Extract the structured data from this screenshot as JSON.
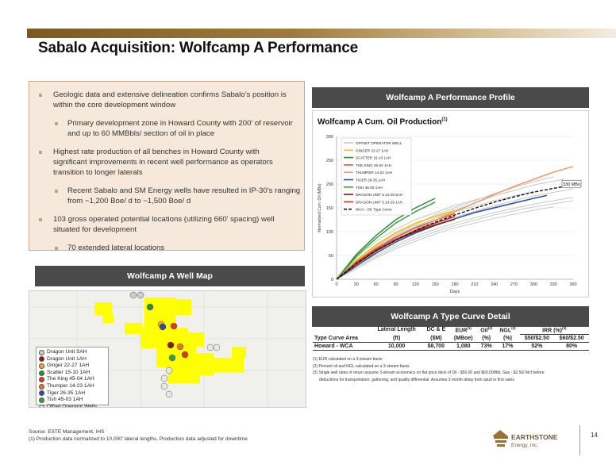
{
  "slide": {
    "title": "Sabalo Acquisition: Wolfcamp A Performance",
    "page_number": "14",
    "colors": {
      "accent": "#8a6a2e",
      "panel_header": "#4a4a4a",
      "bullet_bg": "#f6e8da",
      "map_yellow": "#ffff00"
    }
  },
  "bullets": [
    {
      "level": 1,
      "lines": [
        "Geologic data and extensive delineation confirms Sabalo’s position is",
        "within the core development window"
      ]
    },
    {
      "level": 2,
      "lines": [
        "Primary development zone in Howard County with 200’ of reservoir",
        "and up to 60 MMBbls/ section of oil in place"
      ]
    },
    {
      "level": 1,
      "lines": [
        "Highest rate production of all benches in Howard County with",
        "significant improvements in recent well performance as operators",
        "transition to longer laterals"
      ]
    },
    {
      "level": 2,
      "lines": [
        "Recent Sabalo and SM Energy wells have resulted in IP-30’s ranging",
        "from ~1,200 Boe/ d to ~1,500 Boe/ d"
      ]
    },
    {
      "level": 1,
      "lines": [
        "103 gross operated potential locations (utilizing 660’ spacing) well",
        "situated for development"
      ]
    },
    {
      "level": 2,
      "lines": [
        "70 extended lateral locations"
      ]
    }
  ],
  "performance_profile": {
    "header": "Wolfcamp A Performance Profile",
    "chart_title": "Wolfcamp A Cum. Oil Production",
    "chart_title_sup": "(1)"
  },
  "well_map": {
    "header": "Wolfcamp A Well Map",
    "legend": [
      {
        "label": "Dragon Unit SAH",
        "color": "#cccccc"
      },
      {
        "label": "Dragon Unit 1AH",
        "color": "#8b1a1a"
      },
      {
        "label": "Ginger 22-27 1AH",
        "color": "#f2a33a"
      },
      {
        "label": "Scatter 15-10 1AH",
        "color": "#2e8b3e"
      },
      {
        "label": "The King 45-04 1AH",
        "color": "#d93a1a"
      },
      {
        "label": "Thumper 14-23 1AH",
        "color": "#e07a20"
      },
      {
        "label": "Tiger 26-35 1AH",
        "color": "#2a4fa8"
      },
      {
        "label": "Tish 45-03 1AH",
        "color": "#3aa03a"
      },
      {
        "label": "Offset Operator Wells",
        "color": "#e8e8e8"
      }
    ]
  },
  "type_curve": {
    "header": "Wolfcamp A Type Curve Detail",
    "columns": [
      "Type Curve Area",
      "Lateral Length (ft)",
      "DC & E ($M)",
      "EUR(1) (MBoe)",
      "Oil(2) (%)",
      "NGL(2) (%)",
      "IRR (%)(3) $50/$2.50",
      "IRR (%)(3) $60/$2.50"
    ],
    "header_row1": [
      "",
      "Lateral Length",
      "DC & E",
      "EUR",
      "Oil",
      "NGL",
      "IRR (%)"
    ],
    "header_row1_sup": [
      "",
      "",
      "",
      "(1)",
      "(2)",
      "(2)",
      "(3)"
    ],
    "header_row2": [
      "Type Curve Area",
      "(ft)",
      "($M)",
      "(MBoe)",
      "(%)",
      "(%)",
      "$50/$2.50",
      "$60/$2.50"
    ],
    "rows": [
      [
        "Howard - WCA",
        "10,000",
        "$8,700",
        "1,080",
        "73%",
        "17%",
        "52%",
        "80%"
      ]
    ],
    "notes": [
      "(1) EUR calculated on a 3-stream basis",
      "(2) Percent oil and NGL calculated on a 3-stream basis",
      "(3) Single well rates of return assume 3-stream economics on flat price deck of Oil - $50.00 and $60.00/Bbl, Gas - $2.50/ Mcf before",
      "deductions for transportation, gathering, and quality differential. Assumes 3 month delay from spud to first sales"
    ]
  },
  "footer": {
    "source": "Source: ESTE Management, IHS",
    "note": "(1)   Production data normalized to 10,000’ lateral lengths. Production data adjusted for downtime"
  },
  "logo": {
    "name": "EARTHSTONE",
    "sub": "Energy, Inc."
  },
  "chart_data": {
    "type": "line",
    "title": "Wolfcamp A Cum. Oil Production",
    "xlabel": "Days",
    "ylabel": "Normalized Cum. Oil (MBo)",
    "xlim": [
      0,
      360
    ],
    "ylim": [
      0,
      300
    ],
    "xticks": [
      0,
      30,
      60,
      90,
      120,
      150,
      180,
      210,
      240,
      270,
      300,
      330,
      360
    ],
    "yticks": [
      0,
      50,
      100,
      150,
      200,
      250,
      300
    ],
    "annotation": "330 MBo",
    "legend_position": "top-left",
    "series": [
      {
        "name": "OFFSET OPERATOR WELL",
        "color": "#c8c8c8",
        "width": 1,
        "dash": "",
        "x": [
          0,
          30,
          60,
          90,
          120,
          150,
          180,
          240,
          300,
          330
        ],
        "y": [
          0,
          40,
          70,
          95,
          115,
          135,
          150,
          180,
          205,
          215
        ]
      },
      {
        "name": "",
        "color": "#c8c8c8",
        "width": 1,
        "dash": "",
        "x": [
          0,
          30,
          60,
          90,
          120,
          150,
          180,
          240,
          300,
          360
        ],
        "y": [
          0,
          30,
          55,
          78,
          98,
          115,
          130,
          155,
          175,
          190
        ]
      },
      {
        "name": "",
        "color": "#c8c8c8",
        "width": 1,
        "dash": "",
        "x": [
          0,
          30,
          60,
          90,
          120,
          150,
          180,
          240,
          300,
          360
        ],
        "y": [
          0,
          25,
          48,
          68,
          85,
          100,
          113,
          135,
          152,
          165
        ]
      },
      {
        "name": "",
        "color": "#c8c8c8",
        "width": 1,
        "dash": "",
        "x": [
          0,
          30,
          60,
          90,
          120,
          150,
          180,
          240,
          300,
          345
        ],
        "y": [
          0,
          35,
          65,
          90,
          110,
          128,
          145,
          175,
          198,
          210
        ]
      },
      {
        "name": "",
        "color": "#c8c8c8",
        "width": 1,
        "dash": "",
        "x": [
          0,
          30,
          60,
          90,
          120,
          150,
          180,
          240
        ],
        "y": [
          0,
          45,
          80,
          105,
          125,
          140,
          155,
          178
        ]
      },
      {
        "name": "",
        "color": "#c8c8c8",
        "width": 1,
        "dash": "",
        "x": [
          0,
          30,
          60,
          90,
          120,
          150,
          180,
          240,
          300,
          360
        ],
        "y": [
          0,
          28,
          52,
          72,
          90,
          105,
          118,
          140,
          158,
          172
        ]
      },
      {
        "name": "",
        "color": "#c8c8c8",
        "width": 1,
        "dash": "",
        "x": [
          0,
          30,
          60,
          90,
          120,
          150,
          180,
          240,
          300
        ],
        "y": [
          0,
          38,
          68,
          92,
          112,
          128,
          142,
          165,
          185
        ]
      },
      {
        "name": "",
        "color": "#c8c8c8",
        "width": 1,
        "dash": "",
        "x": [
          0,
          30,
          60,
          90,
          120,
          150,
          180,
          240,
          300,
          330
        ],
        "y": [
          0,
          22,
          45,
          64,
          80,
          95,
          108,
          128,
          145,
          152
        ]
      },
      {
        "name": "",
        "color": "#c8c8c8",
        "width": 1,
        "dash": "",
        "x": [
          0,
          30,
          60,
          90,
          120,
          150,
          180,
          240,
          300
        ],
        "y": [
          0,
          33,
          60,
          82,
          100,
          116,
          130,
          152,
          170
        ]
      },
      {
        "name": "",
        "color": "#c8c8c8",
        "width": 1,
        "dash": "",
        "x": [
          0,
          30,
          60,
          90,
          120,
          150
        ],
        "y": [
          0,
          35,
          62,
          85,
          102,
          118
        ]
      },
      {
        "name": "GINGER 22-27 1AH",
        "color": "#f2c200",
        "width": 1.5,
        "dash": "",
        "x": [
          0,
          30,
          60,
          90,
          120,
          150,
          180
        ],
        "y": [
          0,
          40,
          72,
          98,
          118,
          132,
          145
        ]
      },
      {
        "name": "SCATTER 15-10 1AH",
        "color": "#2e8b3e",
        "width": 1.5,
        "dash": "",
        "x": [
          0,
          30,
          60,
          90,
          120,
          150
        ],
        "y": [
          0,
          52,
          92,
          125,
          150,
          170
        ]
      },
      {
        "name": "THE KING 45-04 1AH",
        "color": "#e8542a",
        "width": 1.5,
        "dash": "",
        "x": [
          0,
          30,
          60,
          90,
          120,
          150,
          180
        ],
        "y": [
          0,
          36,
          65,
          88,
          108,
          124,
          138
        ]
      },
      {
        "name": "THUMPER 14-23 1AH",
        "color": "#f09a60",
        "width": 1.5,
        "dash": "",
        "x": [
          0,
          30,
          60,
          90,
          120,
          150,
          180,
          210,
          240,
          270,
          300,
          330,
          360
        ],
        "y": [
          0,
          30,
          58,
          82,
          104,
          124,
          142,
          160,
          178,
          195,
          210,
          225,
          237
        ]
      },
      {
        "name": "TIGER 26-35 1AH",
        "color": "#2a4fa8",
        "width": 1.5,
        "dash": "",
        "x": [
          0,
          30,
          60,
          90,
          120,
          150,
          180,
          210,
          240,
          270,
          300,
          320
        ],
        "y": [
          0,
          28,
          55,
          78,
          97,
          113,
          127,
          140,
          150,
          160,
          170,
          176
        ]
      },
      {
        "name": "TISH 45-03 1AH",
        "color": "#3aa03a",
        "width": 1.5,
        "dash": "",
        "x": [
          0,
          30,
          60,
          90,
          120,
          150
        ],
        "y": [
          0,
          48,
          86,
          118,
          142,
          162
        ]
      },
      {
        "name": "DRAGON UNIT 5 23-29 5AH",
        "color": "#8b1a1a",
        "width": 1.5,
        "dash": "",
        "x": [
          0,
          30,
          60,
          90,
          120,
          150,
          180
        ],
        "y": [
          0,
          32,
          60,
          82,
          100,
          114,
          126
        ]
      },
      {
        "name": "DRAGON UNIT 5 23-29 1AH",
        "color": "#c83a18",
        "width": 1.5,
        "dash": "",
        "x": [
          0,
          30,
          60,
          90,
          120,
          150,
          180
        ],
        "y": [
          0,
          34,
          62,
          84,
          102,
          118,
          132
        ]
      },
      {
        "name": "WCA - OK Type Curve",
        "color": "#111111",
        "width": 1.4,
        "dash": "4,2",
        "x": [
          0,
          30,
          60,
          90,
          120,
          150,
          180,
          210,
          240,
          270,
          300,
          330,
          360
        ],
        "y": [
          0,
          33,
          60,
          82,
          102,
          120,
          135,
          149,
          162,
          173,
          183,
          191,
          198
        ]
      }
    ]
  }
}
